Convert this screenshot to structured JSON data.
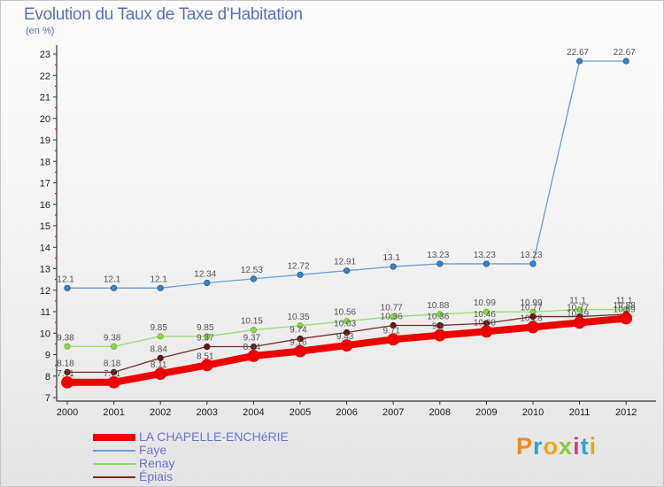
{
  "title": "Evolution du Taux de Taxe d'Habitation",
  "subtitle": "(en %)",
  "brand": "Proxiti",
  "brand_colors": [
    "#f08a1f",
    "#2aa6d8",
    "#f2a31b",
    "#8dc63f",
    "#d93f87",
    "#2aa6d8",
    "#f2a31b"
  ],
  "chart_data": {
    "type": "line",
    "title": "Evolution du Taux de Taxe d'Habitation",
    "ylabel": "(en %)",
    "xlabel": "",
    "ylim": [
      7,
      23
    ],
    "y_ticks": [
      "7",
      "8",
      "9",
      "10",
      "11",
      "12",
      "13",
      "14",
      "15",
      "16",
      "17",
      "18",
      "19",
      "20",
      "21",
      "22",
      "23"
    ],
    "x": [
      "2000",
      "2001",
      "2002",
      "2003",
      "2004",
      "2005",
      "2006",
      "2007",
      "2008",
      "2009",
      "2010",
      "2011",
      "2012"
    ],
    "series": [
      {
        "name": "LA CHAPELLE-ENCHéRIE",
        "color": "#ee0000",
        "values": [
          7.71,
          7.71,
          8.11,
          8.51,
          8.94,
          9.16,
          9.43,
          9.71,
          9.9,
          10.08,
          10.28,
          10.49,
          10.69
        ],
        "labels": [
          "7.71",
          "7.71",
          "8.11",
          "8.51",
          "8.94",
          "9.16",
          "9.43",
          "9.71",
          "9.9",
          "10.08",
          "10.28",
          "10.49",
          "10.69"
        ]
      },
      {
        "name": "Faye",
        "color": "#6a9ed3",
        "values": [
          12.1,
          12.1,
          12.1,
          12.34,
          12.53,
          12.72,
          12.91,
          13.1,
          13.23,
          13.23,
          13.23,
          22.67,
          22.67
        ],
        "labels": [
          "12.1",
          "12.1",
          "12.1",
          "12.34",
          "12.53",
          "12.72",
          "12.91",
          "13.1",
          "13.23",
          "13.23",
          "13.23",
          "22.67",
          "22.67"
        ]
      },
      {
        "name": "Renay",
        "color": "#99dd66",
        "values": [
          9.38,
          9.38,
          9.85,
          9.85,
          10.15,
          10.35,
          10.56,
          10.77,
          10.88,
          10.99,
          10.99,
          11.1,
          11.1
        ],
        "labels": [
          "9.38",
          "9.38",
          "9.85",
          "9.85",
          "10.15",
          "10.35",
          "10.56",
          "10.77",
          "10.88",
          "10.99",
          "10.99",
          "11.1",
          "11.1"
        ]
      },
      {
        "name": "Épiais",
        "color": "#7a2a2a",
        "values": [
          8.18,
          8.18,
          8.84,
          9.37,
          9.37,
          9.74,
          10.03,
          10.36,
          10.36,
          10.46,
          10.77,
          10.77,
          10.88
        ],
        "labels": [
          "8.18",
          "8.18",
          "8.84",
          "9.37",
          "9.37",
          "9.74",
          "10.03",
          "10.36",
          "10.36",
          "10.46",
          "10.77",
          "10.77",
          "10.88"
        ]
      }
    ],
    "legend_position": "bottom-left"
  }
}
